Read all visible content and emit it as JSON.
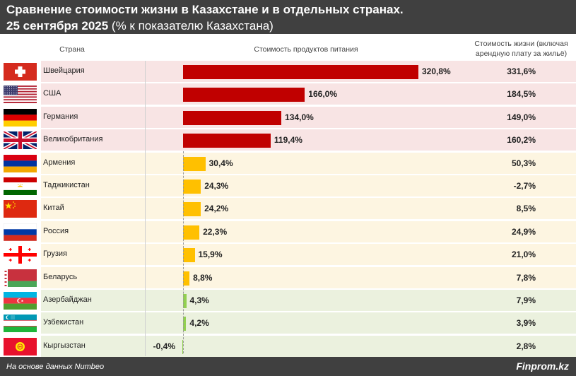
{
  "title_line1": "Сравнение стоимости жизни в Казахстане и в отдельных странах.",
  "title_date": "25 сентября 2025",
  "title_rest": " (% к показателю Казахстана)",
  "col_country": "Страна",
  "col_food": "Стоимость продуктов питания",
  "col_living_line1": "Стоимость жизни (включая",
  "col_living_line2": "арендную плату за жильё)",
  "footer_source": "На основе данных Numbeo",
  "footer_brand": "Finprom.kz",
  "colors": {
    "bar_high": "#c00000",
    "bar_mid": "#ffc000",
    "bar_low": "#92d050",
    "row_high": "#f8e4e4",
    "row_mid": "#fdf5e1",
    "row_low": "#ebf1de",
    "header_bg": "#404040"
  },
  "chart_data": {
    "type": "bar",
    "title": "Сравнение стоимости жизни в Казахстане и в отдельных странах. 25 сентября 2025 (% к показателю Казахстана)",
    "categories": [
      "Швейцария",
      "США",
      "Германия",
      "Великобритания",
      "Армения",
      "Таджикистан",
      "Китай",
      "Россия",
      "Грузия",
      "Беларусь",
      "Азербайджан",
      "Узбекистан",
      "Кыргызстан"
    ],
    "series": [
      {
        "name": "Стоимость продуктов питания",
        "values": [
          320.8,
          166.0,
          134.0,
          119.4,
          30.4,
          24.3,
          24.2,
          22.3,
          15.9,
          8.8,
          4.3,
          4.2,
          -0.4
        ]
      },
      {
        "name": "Стоимость жизни (включая арендную плату за жильё)",
        "values": [
          331.6,
          184.5,
          149.0,
          160.2,
          50.3,
          -2.7,
          8.5,
          24.9,
          21.0,
          7.8,
          7.9,
          3.9,
          2.8
        ]
      }
    ],
    "food_labels": [
      "320,8%",
      "166,0%",
      "134,0%",
      "119,4%",
      "30,4%",
      "24,3%",
      "24,2%",
      "22,3%",
      "15,9%",
      "8,8%",
      "4,3%",
      "4,2%",
      "-0,4%"
    ],
    "living_labels": [
      "331,6%",
      "184,5%",
      "149,0%",
      "160,2%",
      "50,3%",
      "-2,7%",
      "8,5%",
      "24,9%",
      "21,0%",
      "7,8%",
      "7,9%",
      "3,9%",
      "2,8%"
    ],
    "groups": [
      "high",
      "high",
      "high",
      "high",
      "mid",
      "mid",
      "mid",
      "mid",
      "mid",
      "mid",
      "low",
      "low",
      "low"
    ],
    "flags": [
      "flag-switzerland",
      "flag-usa",
      "flag-germany",
      "flag-uk",
      "flag-armenia",
      "flag-tajikistan",
      "flag-china",
      "flag-russia",
      "flag-georgia",
      "flag-belarus",
      "flag-azerbaijan",
      "flag-uzbekistan",
      "flag-kyrgyzstan"
    ],
    "unit": "%"
  }
}
